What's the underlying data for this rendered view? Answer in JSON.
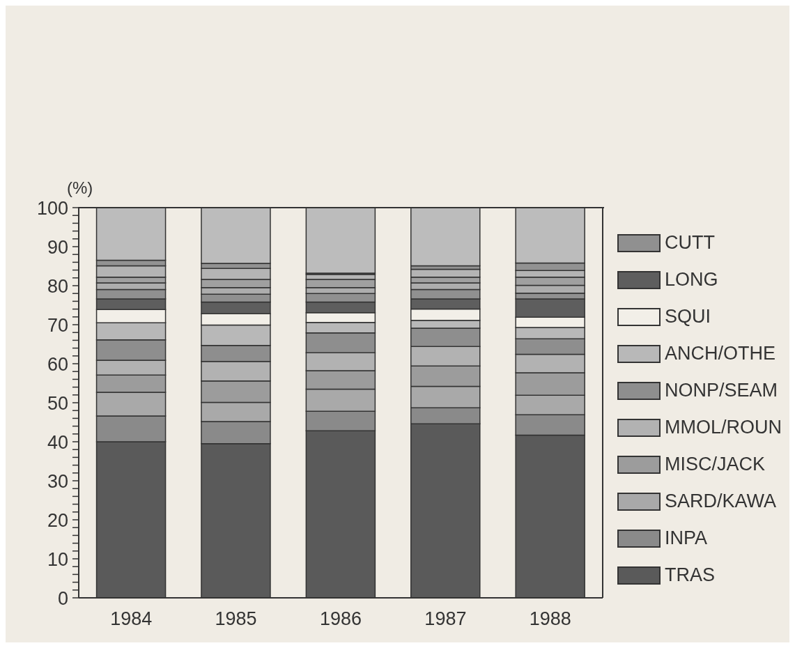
{
  "chart_data": {
    "type": "bar",
    "stacked": true,
    "ylabel": "(%)",
    "categories": [
      "1984",
      "1985",
      "1986",
      "1987",
      "1988"
    ],
    "ylim": [
      0,
      100
    ],
    "yticks": [
      0,
      {
        "value": 2,
        "label": null
      },
      {
        "value": 4,
        "label": null
      },
      {
        "value": 6,
        "label": null
      },
      {
        "value": 8,
        "label": null
      },
      10,
      {
        "value": 12,
        "label": null
      },
      {
        "value": 14,
        "label": null
      },
      {
        "value": 16,
        "label": null
      },
      {
        "value": 18,
        "label": null
      },
      20,
      {
        "value": 22,
        "label": null
      },
      {
        "value": 24,
        "label": null
      },
      {
        "value": 26,
        "label": null
      },
      {
        "value": 28,
        "label": null
      },
      30,
      {
        "value": 32,
        "label": null
      },
      {
        "value": 34,
        "label": null
      },
      {
        "value": 36,
        "label": null
      },
      {
        "value": 38,
        "label": null
      },
      40,
      {
        "value": 42,
        "label": null
      },
      {
        "value": 44,
        "label": null
      },
      {
        "value": 46,
        "label": null
      },
      {
        "value": 48,
        "label": null
      },
      50,
      {
        "value": 52,
        "label": null
      },
      {
        "value": 54,
        "label": null
      },
      {
        "value": 56,
        "label": null
      },
      {
        "value": 58,
        "label": null
      },
      60,
      {
        "value": 62,
        "label": null
      },
      {
        "value": 64,
        "label": null
      },
      {
        "value": 66,
        "label": null
      },
      {
        "value": 68,
        "label": null
      },
      70,
      {
        "value": 72,
        "label": null
      },
      {
        "value": 74,
        "label": null
      },
      {
        "value": 76,
        "label": null
      },
      {
        "value": 78,
        "label": null
      },
      80,
      {
        "value": 82,
        "label": null
      },
      {
        "value": 84,
        "label": null
      },
      {
        "value": 86,
        "label": null
      },
      {
        "value": 88,
        "label": null
      },
      90,
      {
        "value": 92,
        "label": null
      },
      {
        "value": 94,
        "label": null
      },
      {
        "value": 96,
        "label": null
      },
      {
        "value": 98,
        "label": null
      },
      100
    ],
    "grid": false,
    "legend": "right",
    "series": [
      {
        "name": "TRAS",
        "color": "#5a5a5a",
        "values": [
          40.0,
          39.5,
          42.8,
          44.6,
          41.7
        ]
      },
      {
        "name": "INPA",
        "color": "#8a8a8a",
        "values": [
          6.6,
          5.7,
          5.0,
          4.1,
          5.2
        ]
      },
      {
        "name": "SARD/KAWA",
        "color": "#a9a9a9",
        "values": [
          6.1,
          4.9,
          5.7,
          5.5,
          5.0
        ]
      },
      {
        "name": "MISC/JACK",
        "color": "#9c9c9c",
        "values": [
          4.4,
          5.5,
          4.7,
          5.2,
          5.8
        ]
      },
      {
        "name": "MMOL/ROUN",
        "color": "#b2b2b2",
        "values": [
          3.8,
          5.0,
          4.6,
          5.0,
          4.7
        ]
      },
      {
        "name": "NONP/SEAM",
        "color": "#8e8e8e",
        "values": [
          5.2,
          4.1,
          5.1,
          4.7,
          4.0
        ]
      },
      {
        "name": "ANCH/OTHE",
        "color": "#b8b8b8",
        "values": [
          4.4,
          5.2,
          2.7,
          2.0,
          2.9
        ]
      },
      {
        "name": "SQUI",
        "color": "#f2efe8",
        "values": [
          3.4,
          2.9,
          2.5,
          2.9,
          2.6
        ]
      },
      {
        "name": "LONG",
        "color": "#5e5e5e",
        "values": [
          2.7,
          3.0,
          2.7,
          2.6,
          4.7
        ]
      },
      {
        "name": "CUTT",
        "color": "#909090",
        "values": [
          2.4,
          2.0,
          2.2,
          2.4,
          1.5
        ]
      },
      {
        "color": "#adadad",
        "values": [
          1.7,
          1.7,
          1.5,
          1.7,
          2.0
        ]
      },
      {
        "color": "#a0a0a0",
        "values": [
          1.5,
          2.1,
          2.1,
          1.5,
          2.1
        ]
      },
      {
        "color": "#b4b4b4",
        "values": [
          2.9,
          2.8,
          1.3,
          2.0,
          1.7
        ]
      },
      {
        "color": "#929292",
        "values": [
          1.4,
          1.3,
          0.3,
          0.9,
          1.9
        ]
      },
      {
        "color": "#bcbcbc",
        "values": [
          13.5,
          14.3,
          16.8,
          14.9,
          14.2
        ]
      }
    ]
  }
}
